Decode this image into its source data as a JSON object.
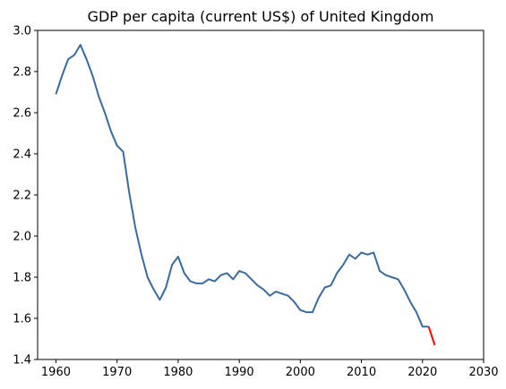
{
  "chart_data": {
    "type": "line",
    "title": "GDP per capita (current US$) of United Kingdom",
    "xlabel": "",
    "ylabel": "",
    "xlim": [
      1957,
      2030
    ],
    "ylim": [
      1.4,
      3.0
    ],
    "x_ticks": [
      1960,
      1970,
      1980,
      1990,
      2000,
      2010,
      2020,
      2030
    ],
    "y_ticks": [
      1.4,
      1.6,
      1.8,
      2.0,
      2.2,
      2.4,
      2.6,
      2.8,
      3.0
    ],
    "grid": false,
    "series": [
      {
        "color": "#3a6aa0",
        "x": [
          1960,
          1961,
          1962,
          1963,
          1964,
          1965,
          1966,
          1967,
          1968,
          1969,
          1970,
          1971,
          1972,
          1973,
          1974,
          1975,
          1976,
          1977,
          1978,
          1979,
          1980,
          1981,
          1982,
          1983,
          1984,
          1985,
          1986,
          1987,
          1988,
          1989,
          1990,
          1991,
          1992,
          1993,
          1994,
          1995,
          1996,
          1997,
          1998,
          1999,
          2000,
          2001,
          2002,
          2003,
          2004,
          2005,
          2006,
          2007,
          2008,
          2009,
          2010,
          2011,
          2012,
          2013,
          2014,
          2015,
          2016,
          2017,
          2018,
          2019,
          2020,
          2021
        ],
        "y": [
          2.69,
          2.78,
          2.86,
          2.88,
          2.93,
          2.86,
          2.78,
          2.68,
          2.6,
          2.51,
          2.44,
          2.41,
          2.21,
          2.04,
          1.91,
          1.8,
          1.74,
          1.69,
          1.75,
          1.86,
          1.9,
          1.82,
          1.78,
          1.77,
          1.77,
          1.79,
          1.78,
          1.81,
          1.82,
          1.79,
          1.83,
          1.82,
          1.79,
          1.76,
          1.74,
          1.71,
          1.73,
          1.72,
          1.71,
          1.68,
          1.64,
          1.63,
          1.63,
          1.7,
          1.75,
          1.76,
          1.82,
          1.86,
          1.91,
          1.89,
          1.92,
          1.91,
          1.92,
          1.83,
          1.81,
          1.8,
          1.79,
          1.74,
          1.68,
          1.63,
          1.56,
          1.56
        ]
      },
      {
        "color": "#ff0000",
        "x": [
          2021,
          2022
        ],
        "y": [
          1.56,
          1.47
        ]
      }
    ]
  }
}
